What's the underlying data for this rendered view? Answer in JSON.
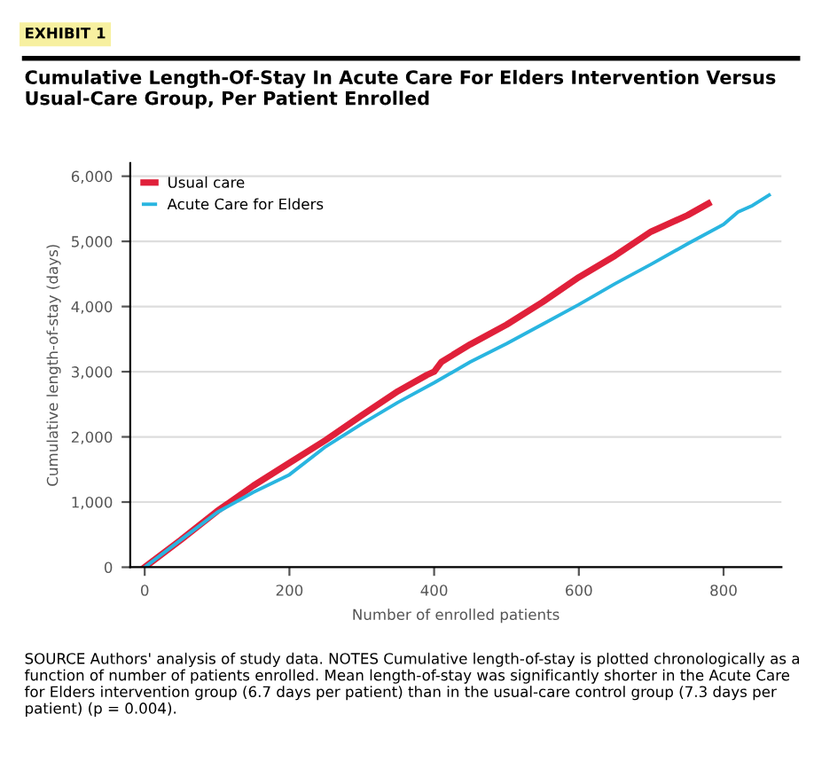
{
  "chart_data": {
    "type": "line",
    "title": "Cumulative Length-Of-Stay In Acute Care For Elders Intervention Versus Usual-Care Group, Per Patient Enrolled",
    "xlabel": "Number of enrolled patients",
    "ylabel": "Cumulative length-of-stay (days)",
    "series": [
      {
        "name": "Usual care",
        "color": "#e0203a",
        "x": [
          0,
          50,
          100,
          150,
          200,
          250,
          300,
          350,
          390,
          400,
          410,
          450,
          500,
          550,
          600,
          650,
          700,
          750,
          779
        ],
        "values": [
          0,
          420,
          860,
          1250,
          1600,
          1950,
          2330,
          2700,
          2950,
          3000,
          3150,
          3420,
          3720,
          4070,
          4450,
          4780,
          5150,
          5400,
          5580
        ]
      },
      {
        "name": "Acute Care for Elders",
        "color": "#29b5e0",
        "x": [
          0,
          50,
          100,
          150,
          200,
          250,
          300,
          350,
          400,
          450,
          500,
          550,
          600,
          650,
          700,
          750,
          800,
          820,
          840,
          863
        ],
        "values": [
          0,
          420,
          840,
          1150,
          1420,
          1850,
          2200,
          2530,
          2830,
          3150,
          3430,
          3730,
          4030,
          4350,
          4650,
          4960,
          5260,
          5450,
          5550,
          5710
        ]
      }
    ],
    "xlim": [
      -20,
      880
    ],
    "xticks": [
      0,
      200,
      400,
      600,
      800
    ],
    "ylim": [
      0,
      6200
    ],
    "yticks": [
      0,
      {
        "value": 1000,
        "label": "1,000"
      },
      {
        "value": 2000,
        "label": "2,000"
      },
      {
        "value": 3000,
        "label": "3,000"
      },
      {
        "value": 4000,
        "label": "4,000"
      },
      {
        "value": 5000,
        "label": "5,000"
      },
      {
        "value": 6000,
        "label": "6,000"
      }
    ],
    "grid": "y",
    "legend": "top left",
    "marker": "none",
    "line_style": "solid",
    "annotations": [
      "EXHIBIT 1",
      "SOURCE Authors' analysis of study data. NOTES Cumulative length-of-stay is plotted chronologically as a function of number of patients enrolled. Mean length-of-stay was significantly shorter in the Acute Care for Elders intervention group (6.7 days per patient) than in the usual-care control group (7.3 days per patient) (p = 0.004)."
    ]
  }
}
